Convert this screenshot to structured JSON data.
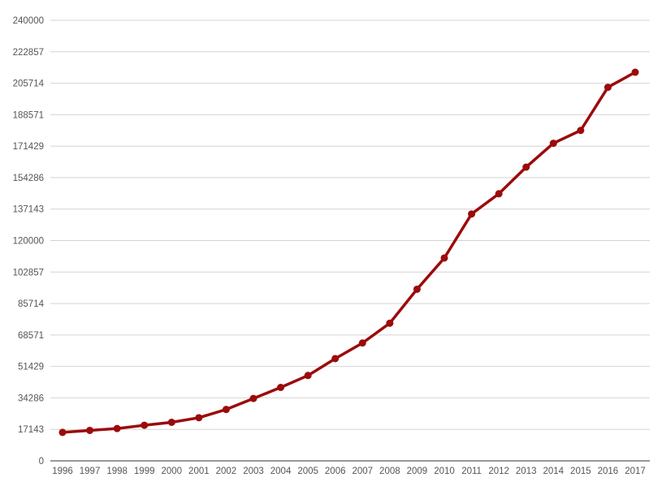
{
  "chart_data": {
    "type": "line",
    "title": "",
    "xlabel": "",
    "ylabel": "",
    "x": [
      "1996",
      "1997",
      "1998",
      "1999",
      "2000",
      "2001",
      "2002",
      "2003",
      "2004",
      "2005",
      "2006",
      "2007",
      "2008",
      "2009",
      "2010",
      "2011",
      "2012",
      "2013",
      "2014",
      "2015",
      "2016",
      "2017"
    ],
    "series": [
      {
        "values": [
          15500,
          16600,
          17600,
          19400,
          21000,
          23500,
          28000,
          34000,
          40000,
          46500,
          55700,
          64200,
          75000,
          93500,
          110500,
          134500,
          145500,
          160000,
          173000,
          180000,
          203500,
          211700
        ]
      }
    ],
    "ylim": [
      0,
      240000
    ],
    "yticks": [
      "0",
      "17143",
      "34286",
      "51429",
      "68571",
      "85714",
      "102857",
      "120000",
      "137143",
      "154286",
      "171429",
      "188571",
      "205714",
      "222857",
      "240000"
    ],
    "grid": true,
    "legend": "none",
    "colors": {
      "line": "#9b0b0b",
      "grid": "#d4d4d4",
      "axis": "#333333",
      "text": "#555555"
    }
  }
}
